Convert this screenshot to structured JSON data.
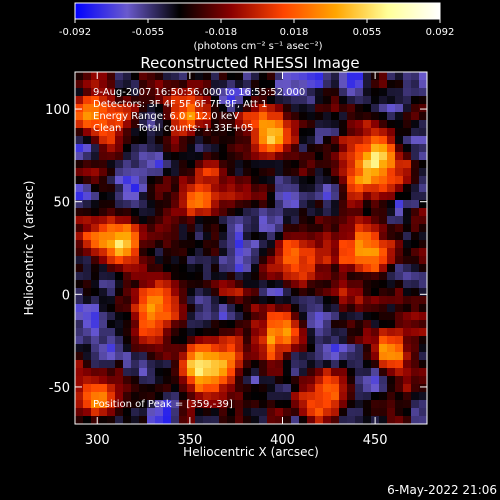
{
  "chart_data": {
    "type": "heatmap",
    "title": "Reconstructed RHESSI Image",
    "xlabel": "Heliocentric X (arcsec)",
    "ylabel": "Heliocentric Y (arcsec)",
    "xlim": [
      288,
      478
    ],
    "ylim": [
      -70,
      120
    ],
    "x_ticks": [
      300,
      350,
      400,
      450
    ],
    "x_tick_labels": [
      "300",
      "350",
      "400",
      "450"
    ],
    "y_ticks": [
      -50,
      0,
      50,
      100
    ],
    "y_tick_labels": [
      "-50",
      "0",
      "50",
      "100"
    ],
    "colorbar": {
      "range": [
        -0.092,
        0.092
      ],
      "tick_labels": [
        "-0.092",
        "-0.055",
        "-0.018",
        "0.018",
        "0.055",
        "0.092"
      ],
      "unit_label": "(photons cm⁻² s⁻¹ asec⁻²)",
      "stops": [
        "#0000ff",
        "#6a5acd",
        "#000000",
        "#8b0000",
        "#ff4500",
        "#ffa500",
        "#ffff99",
        "#ffffff"
      ]
    },
    "annotations": [
      "9-Aug-2007 16:50:56.000 to 16:55:52.000",
      "Detectors: 3F 4F 5F 6F 7F 8F, Att 1",
      "Energy Range: 6.0 - 12.0 keV",
      "Clean     Total counts: 1.33E+05"
    ],
    "peak_label": "Position of Peak = [359,-39]",
    "peak": {
      "x": 359,
      "y": -39
    },
    "bright_sources": [
      {
        "x": 359,
        "y": -39,
        "strength": 1.0
      },
      {
        "x": 450,
        "y": 70,
        "strength": 0.95
      },
      {
        "x": 310,
        "y": 28,
        "strength": 0.85
      },
      {
        "x": 445,
        "y": 22,
        "strength": 0.85
      },
      {
        "x": 395,
        "y": 88,
        "strength": 0.7
      },
      {
        "x": 400,
        "y": -22,
        "strength": 0.7
      },
      {
        "x": 330,
        "y": -5,
        "strength": 0.7
      },
      {
        "x": 300,
        "y": 95,
        "strength": 0.75
      },
      {
        "x": 410,
        "y": 18,
        "strength": 0.65
      },
      {
        "x": 360,
        "y": 58,
        "strength": 0.55
      },
      {
        "x": 465,
        "y": -30,
        "strength": 0.6
      },
      {
        "x": 300,
        "y": -55,
        "strength": 0.6
      },
      {
        "x": 420,
        "y": -55,
        "strength": 0.55
      },
      {
        "x": 350,
        "y": 100,
        "strength": 0.45
      }
    ]
  },
  "footer_date": "6-May-2022 21:06"
}
